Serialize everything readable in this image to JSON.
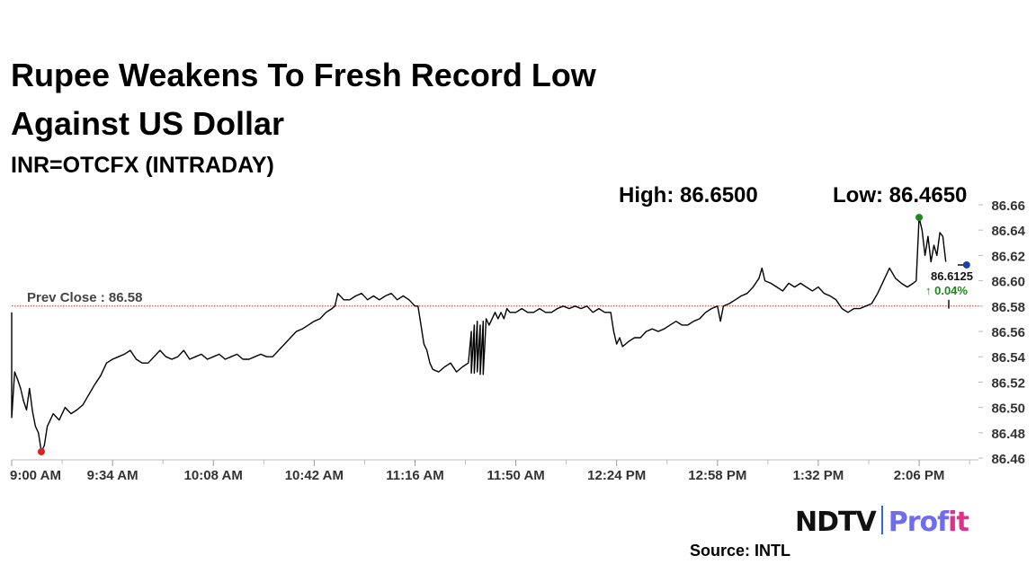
{
  "header": {
    "title_line1": "Rupee Weakens To Fresh Record Low",
    "title_line2": "Against US Dollar",
    "subtitle": "INR=OTCFX (INTRADAY)",
    "high_label": "High: 86.6500",
    "low_label": "Low: 86.4650"
  },
  "footer": {
    "brand_ndtv": "NDTV",
    "brand_profit_a": "Prof",
    "brand_profit_b": "it",
    "source": "Source: INTL"
  },
  "chart_data": {
    "type": "line",
    "x_unit": "time",
    "x_ticks": [
      "9:00 AM",
      "9:34 AM",
      "10:08 AM",
      "10:42 AM",
      "11:16 AM",
      "11:50 AM",
      "12:24 PM",
      "12:58 PM",
      "1:32 PM",
      "2:06 PM"
    ],
    "y_ticks": [
      "86.66",
      "86.64",
      "86.62",
      "86.60",
      "86.58",
      "86.56",
      "86.54",
      "86.52",
      "86.50",
      "86.48",
      "86.46"
    ],
    "xlim": [
      "9:00 AM",
      "2:26 PM"
    ],
    "ylim": [
      86.46,
      86.66
    ],
    "prev_close": 86.58,
    "prev_close_label": "Prev Close : 86.58",
    "last_value_label": "86.6125",
    "change_label": "↑ 0.04%",
    "colors": {
      "line": "#000000",
      "high_marker": "#1a8a1a",
      "low_marker": "#e02020",
      "prev_close": "#c0392b",
      "last_marker": "#1a3fb0",
      "change": "#1a8a1a"
    },
    "series": [
      {
        "points": [
          [
            "9:00 AM",
            86.575
          ],
          [
            "9:00 AM",
            86.492
          ],
          [
            "9:01 AM",
            86.528
          ],
          [
            "9:02 AM",
            86.522
          ],
          [
            "9:03 AM",
            86.515
          ],
          [
            "9:04 AM",
            86.505
          ],
          [
            "9:05 AM",
            86.498
          ],
          [
            "9:06 AM",
            86.515
          ],
          [
            "9:07 AM",
            86.497
          ],
          [
            "9:08 AM",
            86.485
          ],
          [
            "9:09 AM",
            86.48
          ],
          [
            "9:10 AM",
            86.465
          ],
          [
            "9:11 AM",
            86.47
          ],
          [
            "9:12 AM",
            86.485
          ],
          [
            "9:13 AM",
            86.49
          ],
          [
            "9:14 AM",
            86.495
          ],
          [
            "9:16 AM",
            86.49
          ],
          [
            "9:18 AM",
            86.5
          ],
          [
            "9:20 AM",
            86.495
          ],
          [
            "9:22 AM",
            86.498
          ],
          [
            "9:24 AM",
            86.502
          ],
          [
            "9:26 AM",
            86.51
          ],
          [
            "9:28 AM",
            86.518
          ],
          [
            "9:30 AM",
            86.525
          ],
          [
            "9:32 AM",
            86.535
          ],
          [
            "9:34 AM",
            86.538
          ],
          [
            "9:36 AM",
            86.54
          ],
          [
            "9:38 AM",
            86.542
          ],
          [
            "9:40 AM",
            86.545
          ],
          [
            "9:42 AM",
            86.538
          ],
          [
            "9:44 AM",
            86.535
          ],
          [
            "9:46 AM",
            86.535
          ],
          [
            "9:48 AM",
            86.54
          ],
          [
            "9:50 AM",
            86.545
          ],
          [
            "9:52 AM",
            86.54
          ],
          [
            "9:54 AM",
            86.538
          ],
          [
            "9:56 AM",
            86.54
          ],
          [
            "9:58 AM",
            86.545
          ],
          [
            "10:00 AM",
            86.538
          ],
          [
            "10:02 AM",
            86.54
          ],
          [
            "10:04 AM",
            86.542
          ],
          [
            "10:06 AM",
            86.538
          ],
          [
            "10:08 AM",
            86.54
          ],
          [
            "10:10 AM",
            86.542
          ],
          [
            "10:12 AM",
            86.538
          ],
          [
            "10:14 AM",
            86.54
          ],
          [
            "10:16 AM",
            86.542
          ],
          [
            "10:18 AM",
            86.538
          ],
          [
            "10:20 AM",
            86.538
          ],
          [
            "10:22 AM",
            86.54
          ],
          [
            "10:24 AM",
            86.542
          ],
          [
            "10:26 AM",
            86.54
          ],
          [
            "10:28 AM",
            86.54
          ],
          [
            "10:30 AM",
            86.545
          ],
          [
            "10:32 AM",
            86.55
          ],
          [
            "10:34 AM",
            86.555
          ],
          [
            "10:36 AM",
            86.56
          ],
          [
            "10:38 AM",
            86.562
          ],
          [
            "10:40 AM",
            86.565
          ],
          [
            "10:42 AM",
            86.568
          ],
          [
            "10:44 AM",
            86.57
          ],
          [
            "10:46 AM",
            86.575
          ],
          [
            "10:48 AM",
            86.578
          ],
          [
            "10:49 AM",
            86.58
          ],
          [
            "10:50 AM",
            86.59
          ],
          [
            "10:52 AM",
            86.585
          ],
          [
            "10:54 AM",
            86.585
          ],
          [
            "10:56 AM",
            86.588
          ],
          [
            "10:58 AM",
            86.59
          ],
          [
            "11:00 AM",
            86.585
          ],
          [
            "11:02 AM",
            86.588
          ],
          [
            "11:04 AM",
            86.585
          ],
          [
            "11:06 AM",
            86.588
          ],
          [
            "11:08 AM",
            86.59
          ],
          [
            "11:10 AM",
            86.585
          ],
          [
            "11:12 AM",
            86.588
          ],
          [
            "11:14 AM",
            86.585
          ],
          [
            "11:16 AM",
            86.58
          ],
          [
            "11:17 AM",
            86.58
          ],
          [
            "11:18 AM",
            86.565
          ],
          [
            "11:19 AM",
            86.55
          ],
          [
            "11:20 AM",
            86.545
          ],
          [
            "11:21 AM",
            86.535
          ],
          [
            "11:22 AM",
            86.53
          ],
          [
            "11:24 AM",
            86.528
          ],
          [
            "11:26 AM",
            86.532
          ],
          [
            "11:28 AM",
            86.535
          ],
          [
            "11:30 AM",
            86.528
          ],
          [
            "11:32 AM",
            86.532
          ],
          [
            "11:34 AM",
            86.535
          ],
          [
            "11:35 AM",
            86.56
          ],
          [
            "11:35 AM",
            86.527
          ],
          [
            "11:36 AM",
            86.565
          ],
          [
            "11:36 AM",
            86.527
          ],
          [
            "11:37 AM",
            86.568
          ],
          [
            "11:37 AM",
            86.528
          ],
          [
            "11:38 AM",
            86.565
          ],
          [
            "11:38 AM",
            86.526
          ],
          [
            "11:39 AM",
            86.568
          ],
          [
            "11:39 AM",
            86.526
          ],
          [
            "11:40 AM",
            86.57
          ],
          [
            "11:41 AM",
            86.565
          ],
          [
            "11:42 AM",
            86.57
          ],
          [
            "11:43 AM",
            86.575
          ],
          [
            "11:44 AM",
            86.57
          ],
          [
            "11:45 AM",
            86.575
          ],
          [
            "11:46 AM",
            86.57
          ],
          [
            "11:47 AM",
            86.578
          ],
          [
            "11:48 AM",
            86.575
          ],
          [
            "11:50 AM",
            86.575
          ],
          [
            "11:52 AM",
            86.578
          ],
          [
            "11:54 AM",
            86.575
          ],
          [
            "11:56 AM",
            86.575
          ],
          [
            "11:58 AM",
            86.578
          ],
          [
            "12:00 PM",
            86.575
          ],
          [
            "12:02 PM",
            86.575
          ],
          [
            "12:04 PM",
            86.578
          ],
          [
            "12:06 PM",
            86.58
          ],
          [
            "12:08 PM",
            86.578
          ],
          [
            "12:10 PM",
            86.58
          ],
          [
            "12:12 PM",
            86.578
          ],
          [
            "12:14 PM",
            86.58
          ],
          [
            "12:16 PM",
            86.575
          ],
          [
            "12:18 PM",
            86.578
          ],
          [
            "12:20 PM",
            86.575
          ],
          [
            "12:22 PM",
            86.575
          ],
          [
            "12:23 PM",
            86.56
          ],
          [
            "12:24 PM",
            86.55
          ],
          [
            "12:25 PM",
            86.555
          ],
          [
            "12:26 PM",
            86.548
          ],
          [
            "12:28 PM",
            86.552
          ],
          [
            "12:30 PM",
            86.555
          ],
          [
            "12:32 PM",
            86.555
          ],
          [
            "12:34 PM",
            86.56
          ],
          [
            "12:36 PM",
            86.562
          ],
          [
            "12:38 PM",
            86.56
          ],
          [
            "12:40 PM",
            86.562
          ],
          [
            "12:42 PM",
            86.565
          ],
          [
            "12:44 PM",
            86.568
          ],
          [
            "12:46 PM",
            86.565
          ],
          [
            "12:48 PM",
            86.565
          ],
          [
            "12:50 PM",
            86.568
          ],
          [
            "12:52 PM",
            86.57
          ],
          [
            "12:54 PM",
            86.575
          ],
          [
            "12:56 PM",
            86.578
          ],
          [
            "12:58 PM",
            86.58
          ],
          [
            "12:59 PM",
            86.568
          ],
          [
            "1:00 PM",
            86.58
          ],
          [
            "1:02 PM",
            86.582
          ],
          [
            "1:04 PM",
            86.585
          ],
          [
            "1:06 PM",
            86.588
          ],
          [
            "1:08 PM",
            86.59
          ],
          [
            "1:10 PM",
            86.595
          ],
          [
            "1:12 PM",
            86.602
          ],
          [
            "1:13 PM",
            86.61
          ],
          [
            "1:14 PM",
            86.6
          ],
          [
            "1:16 PM",
            86.598
          ],
          [
            "1:18 PM",
            86.595
          ],
          [
            "1:20 PM",
            86.592
          ],
          [
            "1:22 PM",
            86.598
          ],
          [
            "1:24 PM",
            86.595
          ],
          [
            "1:26 PM",
            86.598
          ],
          [
            "1:28 PM",
            86.595
          ],
          [
            "1:30 PM",
            86.592
          ],
          [
            "1:32 PM",
            86.595
          ],
          [
            "1:34 PM",
            86.59
          ],
          [
            "1:36 PM",
            86.588
          ],
          [
            "1:38 PM",
            86.585
          ],
          [
            "1:40 PM",
            86.578
          ],
          [
            "1:42 PM",
            86.575
          ],
          [
            "1:44 PM",
            86.578
          ],
          [
            "1:46 PM",
            86.578
          ],
          [
            "1:48 PM",
            86.58
          ],
          [
            "1:50 PM",
            86.582
          ],
          [
            "1:52 PM",
            86.59
          ],
          [
            "1:54 PM",
            86.6
          ],
          [
            "1:56 PM",
            86.61
          ],
          [
            "1:58 PM",
            86.602
          ],
          [
            "2:00 PM",
            86.598
          ],
          [
            "2:02 PM",
            86.595
          ],
          [
            "2:04 PM",
            86.598
          ],
          [
            "2:05 PM",
            86.6
          ],
          [
            "2:06 PM",
            86.65
          ],
          [
            "2:07 PM",
            86.64
          ],
          [
            "2:08 PM",
            86.62
          ],
          [
            "2:09 PM",
            86.635
          ],
          [
            "2:10 PM",
            86.615
          ],
          [
            "2:11 PM",
            86.628
          ],
          [
            "2:12 PM",
            86.62
          ],
          [
            "2:13 PM",
            86.638
          ],
          [
            "2:14 PM",
            86.635
          ],
          [
            "2:15 PM",
            86.615
          ]
        ]
      }
    ],
    "tail_segments": [
      [
        [
          "2:16 PM",
          86.585
        ],
        [
          "2:16 PM",
          86.578
        ]
      ],
      [
        [
          "2:19 PM",
          86.6125
        ],
        [
          "2:22 PM",
          86.6125
        ]
      ]
    ],
    "high_point": [
      "2:06 PM",
      86.65
    ],
    "low_point": [
      "9:10 AM",
      86.465
    ],
    "last_point": [
      "2:22 PM",
      86.6125
    ]
  }
}
